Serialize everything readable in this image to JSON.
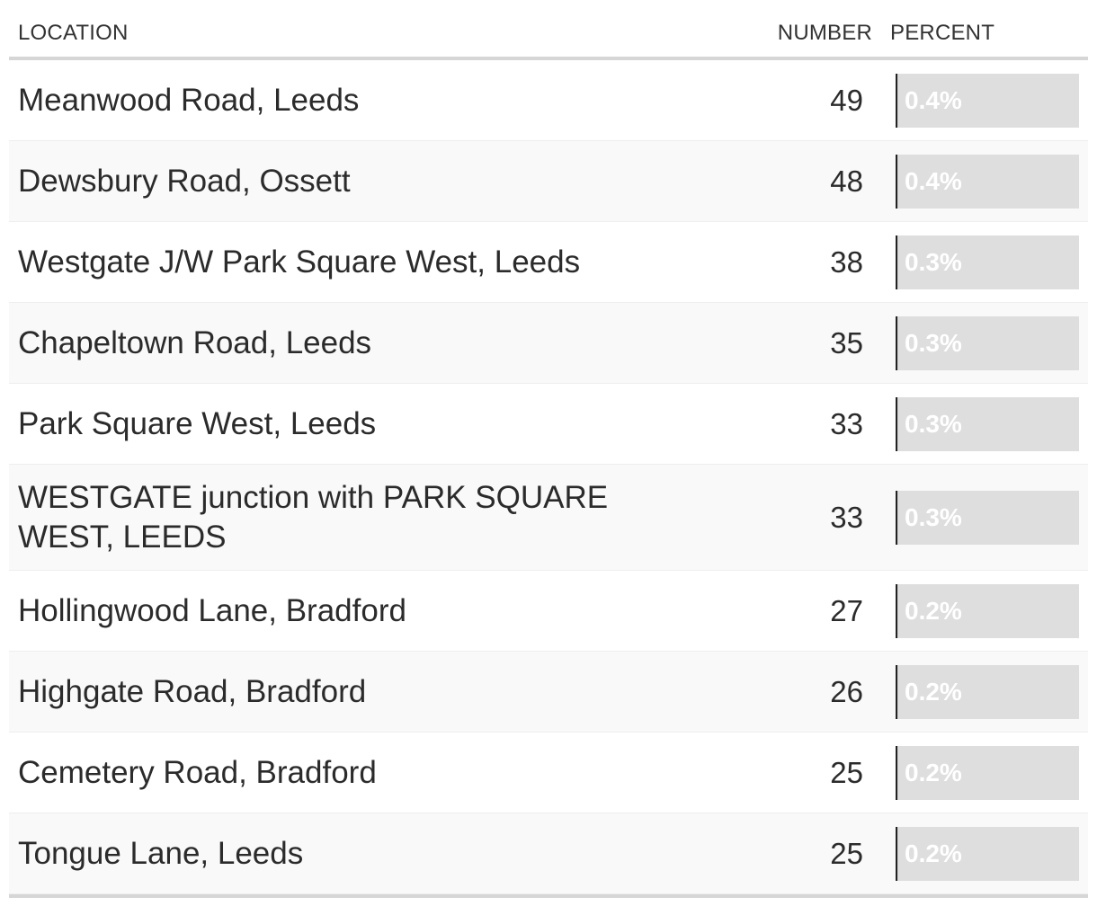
{
  "header": {
    "location": "LOCATION",
    "number": "NUMBER",
    "percent": "PERCENT"
  },
  "rows": [
    {
      "location": "Meanwood Road, Leeds",
      "number": "49",
      "percent": "0.4%",
      "percent_value": 0.4
    },
    {
      "location": "Dewsbury Road, Ossett",
      "number": "48",
      "percent": "0.4%",
      "percent_value": 0.4
    },
    {
      "location": "Westgate J/W Park Square West, Leeds",
      "number": "38",
      "percent": "0.3%",
      "percent_value": 0.3
    },
    {
      "location": "Chapeltown Road, Leeds",
      "number": "35",
      "percent": "0.3%",
      "percent_value": 0.3
    },
    {
      "location": "Park Square West, Leeds",
      "number": "33",
      "percent": "0.3%",
      "percent_value": 0.3
    },
    {
      "location": "WESTGATE junction with PARK SQUARE WEST, LEEDS",
      "number": "33",
      "percent": "0.3%",
      "percent_value": 0.3
    },
    {
      "location": "Hollingwood Lane, Bradford",
      "number": "27",
      "percent": "0.2%",
      "percent_value": 0.2
    },
    {
      "location": "Highgate Road, Bradford",
      "number": "26",
      "percent": "0.2%",
      "percent_value": 0.2
    },
    {
      "location": "Cemetery Road, Bradford",
      "number": "25",
      "percent": "0.2%",
      "percent_value": 0.2
    },
    {
      "location": "Tongue Lane, Leeds",
      "number": "25",
      "percent": "0.2%",
      "percent_value": 0.2
    }
  ],
  "colors": {
    "bar_background": "#dedede",
    "bar_axis": "#222222",
    "bar_label": "#ffffff",
    "row_alt": "#f9f9f9"
  }
}
